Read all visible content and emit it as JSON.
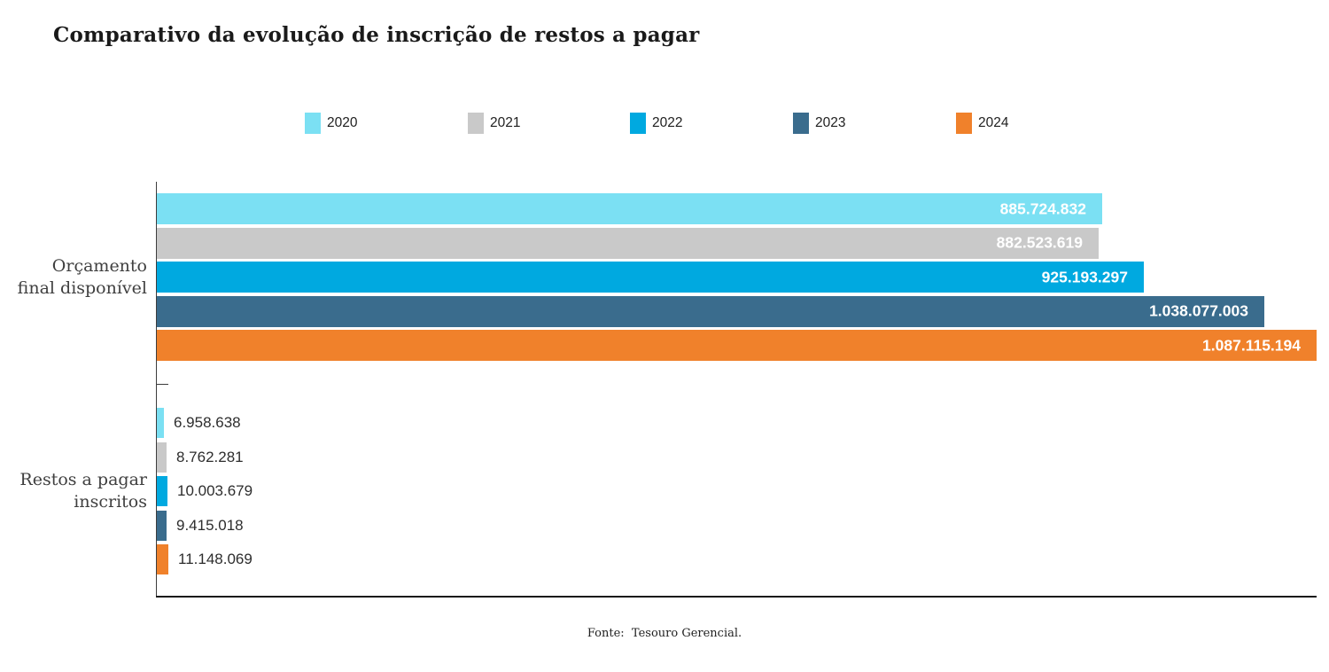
{
  "title": "Comparativo da evolução de inscrição de restos a pagar",
  "footer": "Fonte:  Tesouro Gerencial.",
  "chart_data": {
    "type": "bar",
    "orientation": "horizontal",
    "title": "Comparativo da evolução de inscrição de restos a pagar",
    "categories": [
      "Orçamento final disponível",
      "Restos a pagar inscritos"
    ],
    "category_lines": [
      [
        "Orçamento",
        "final disponível"
      ],
      [
        "Restos a pagar",
        "inscritos"
      ]
    ],
    "series": [
      {
        "name": "2020",
        "color": "#7BE0F3",
        "values": [
          885724832,
          6958638
        ],
        "value_labels": [
          "885.724.832",
          "6.958.638"
        ]
      },
      {
        "name": "2021",
        "color": "#C9C9C9",
        "values": [
          882523619,
          8762281
        ],
        "value_labels": [
          "882.523.619",
          "8.762.281"
        ]
      },
      {
        "name": "2022",
        "color": "#00A9E0",
        "values": [
          925193297,
          10003679
        ],
        "value_labels": [
          "925.193.297",
          "10.003.679"
        ]
      },
      {
        "name": "2023",
        "color": "#3A6C8D",
        "values": [
          1038077003,
          9415018
        ],
        "value_labels": [
          "1.038.077.003",
          "9.415.018"
        ]
      },
      {
        "name": "2024",
        "color": "#F0812B",
        "values": [
          1087115194,
          11148069
        ],
        "value_labels": [
          "1.087.115.194",
          "11.148.069"
        ]
      }
    ],
    "xlim": [
      0,
      1087115194
    ],
    "legend_position": "top",
    "grid": false,
    "axis_color": "#3c3c3c",
    "value_label_placement": [
      "inside-end",
      "outside-end"
    ],
    "source": "Fonte:  Tesouro Gerencial."
  }
}
